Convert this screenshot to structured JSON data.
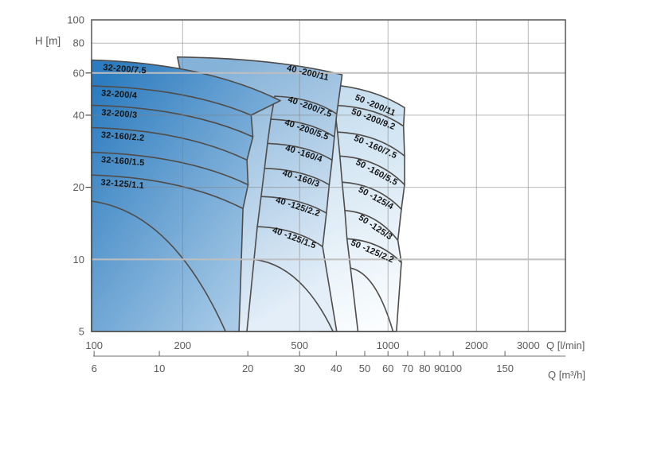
{
  "page": {
    "background": "#ffffff"
  },
  "palette": {
    "curve_stroke": "#4f4c49",
    "grid": "#7f7f7f",
    "grid_light": "#bfbfbf",
    "axis": "#4a4a4a",
    "tick_text": "#5a5a5a",
    "band_label_text": "#151515"
  },
  "chart_data": {
    "type": "area",
    "title": "",
    "point_format": "[Q_l_per_min, H_m]",
    "y_axis": {
      "label": "H [m]",
      "scale": "log",
      "min": 5,
      "max": 100,
      "ticks": [
        100,
        80,
        60,
        40,
        20,
        10,
        5
      ],
      "gridlines": [
        10,
        20,
        40,
        60,
        80
      ],
      "light_gridlines": [
        60,
        10
      ],
      "outside_ticks": [
        20,
        40,
        60
      ]
    },
    "x_axis": {
      "label": "Q [l/min]",
      "scale": "log",
      "min": 98,
      "max": 4015,
      "ticks": [
        100,
        200,
        500,
        1000,
        2000,
        3000
      ],
      "gridlines": [
        200,
        500,
        1000,
        2000,
        3000
      ]
    },
    "x_axis2": {
      "label": "Q [m³/h]",
      "ticks": [
        6,
        10,
        20,
        30,
        40,
        50,
        60,
        70,
        80,
        90,
        100,
        150
      ],
      "lmin_per_unit": 16.667
    },
    "families": [
      {
        "name": "32",
        "gradient": [
          "#2d7cbf",
          "#a9cbe7"
        ],
        "bands": [
          {
            "label": "32-200/7.5",
            "s": [
              98,
              68
            ],
            "e": [
              430,
              46
            ]
          },
          {
            "label": "32-200/4",
            "s": [
              98,
              53
            ],
            "e": [
              342,
              40
            ]
          },
          {
            "label": "32-200/3",
            "s": [
              98,
              44
            ],
            "e": [
              347,
              32.5
            ]
          },
          {
            "label": "32-160/2.2",
            "s": [
              98,
              35.5
            ],
            "e": [
              331,
              26
            ]
          },
          {
            "label": "32-160/1.5",
            "s": [
              98,
              28
            ],
            "e": [
              334,
              20.5
            ]
          },
          {
            "label": "32-125/1.1",
            "s": [
              98,
              22.5
            ],
            "e": [
              321,
              16.3
            ]
          }
        ],
        "bottom_curve": {
          "s": [
            98,
            17.5
          ],
          "e": [
            280,
            5
          ]
        },
        "bottom_right_q": 311,
        "bottom_left_q": 98
      },
      {
        "name": "40",
        "gradient": [
          "#85b2d8",
          "#e3eef8"
        ],
        "bands": [
          {
            "label": "40 -200/11",
            "s": [
              192,
              70
            ],
            "e": [
              698,
              59
            ]
          },
          {
            "label": "40 -200/7.5",
            "s": [
              412,
              48
            ],
            "e": [
              669,
              40.5
            ]
          },
          {
            "label": "40 -200/5.5",
            "s": [
              399,
              38.5
            ],
            "e": [
              657,
              32.5
            ]
          },
          {
            "label": "40 -160/4",
            "s": [
              389,
              30.5
            ],
            "e": [
              645,
              26
            ]
          },
          {
            "label": "40 -160/3",
            "s": [
              380,
              24
            ],
            "e": [
              631,
              20.5
            ]
          },
          {
            "label": "40 -125/2.2",
            "s": [
              370,
              18.3
            ],
            "e": [
              617,
              15.6
            ]
          },
          {
            "label": "40 -125/1.5",
            "s": [
              359,
              13.7
            ],
            "e": [
              599,
              11.3
            ]
          }
        ],
        "bottom_curve": {
          "s": [
            350,
            10
          ],
          "e": [
            650,
            5
          ]
        },
        "bottom_right_q": 669,
        "bottom_left_q": 300
      },
      {
        "name": "50",
        "gradient": [
          "#c3dcee",
          "#fbfdfe"
        ],
        "bands": [
          {
            "label": "50 -200/11",
            "s": [
              580,
              54
            ],
            "e": [
              1138,
              43
            ]
          },
          {
            "label": "50 -200/9.2",
            "s": [
              657,
              44
            ],
            "e": [
              1129,
              36
            ]
          },
          {
            "label": "50 -160/7.5",
            "s": [
              673,
              34
            ],
            "e": [
              1138,
              27
            ]
          },
          {
            "label": "50 -160/5.5",
            "s": [
              686,
              27
            ],
            "e": [
              1138,
              20.5
            ]
          },
          {
            "label": "50 -125/4",
            "s": [
              698,
              21
            ],
            "e": [
              1110,
              16.2
            ]
          },
          {
            "label": "50 -125/3",
            "s": [
              713,
              16
            ],
            "e": [
              1080,
              12
            ]
          },
          {
            "label": "50 -125/2.2",
            "s": [
              725,
              12.2
            ],
            "e": [
              1110,
              9.7
            ]
          }
        ],
        "bottom_curve": {
          "s": [
            745,
            9.2
          ],
          "e": [
            1040,
            5
          ]
        },
        "bottom_right_q": 1068,
        "bottom_left_q": 580
      }
    ]
  }
}
